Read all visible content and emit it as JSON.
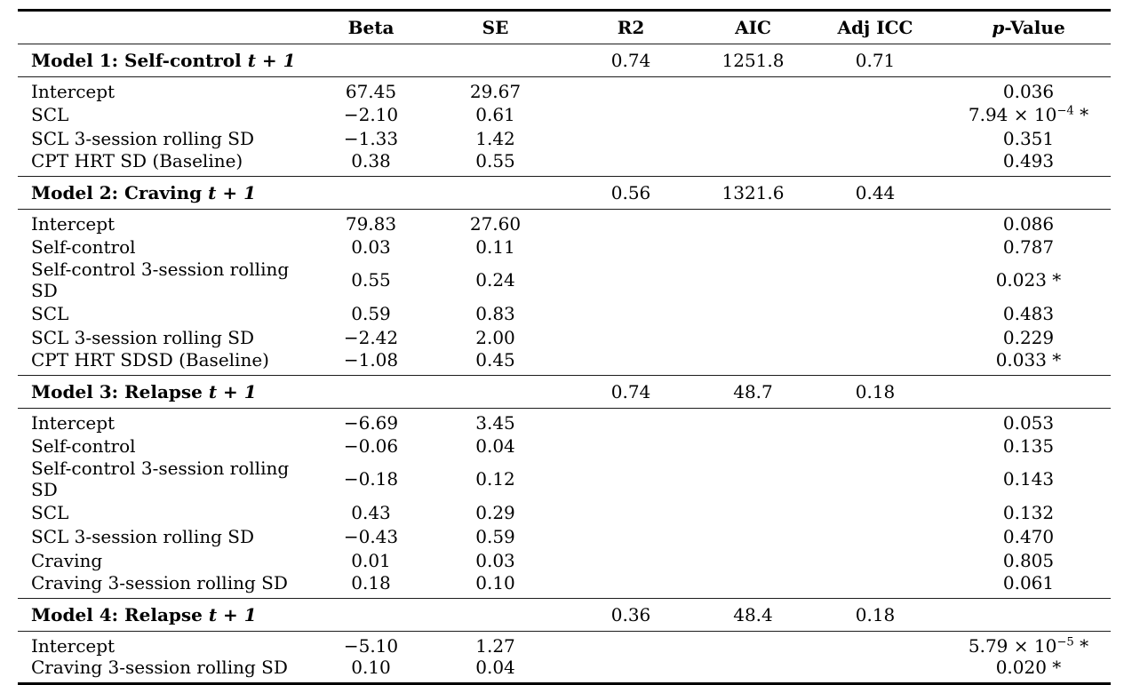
{
  "table": {
    "headers": {
      "beta": "Beta",
      "se": "SE",
      "r2": "R2",
      "aic": "AIC",
      "adj_icc": "Adj ICC",
      "p_italic": "p",
      "p_suffix": "-Value"
    },
    "models": [
      {
        "title": "Model 1: Self-control ",
        "title_t": "t + 1",
        "r2": "0.74",
        "aic": "1251.8",
        "adj_icc": "0.71",
        "rows": [
          {
            "label": "Intercept",
            "beta": "67.45",
            "se": "29.67",
            "p": "0.036",
            "p_sup": "",
            "p_after": ""
          },
          {
            "label": "SCL",
            "beta": "−2.10",
            "se": "0.61",
            "p": "7.94 × 10",
            "p_sup": "−4",
            "p_after": " *"
          },
          {
            "label": "SCL 3-session rolling SD",
            "beta": "−1.33",
            "se": "1.42",
            "p": "0.351",
            "p_sup": "",
            "p_after": ""
          },
          {
            "label": "CPT HRT SD (Baseline)",
            "beta": "0.38",
            "se": "0.55",
            "p": "0.493",
            "p_sup": "",
            "p_after": ""
          }
        ]
      },
      {
        "title": "Model 2: Craving ",
        "title_t": "t + 1",
        "r2": "0.56",
        "aic": "1321.6",
        "adj_icc": "0.44",
        "rows": [
          {
            "label": "Intercept",
            "beta": "79.83",
            "se": "27.60",
            "p": "0.086",
            "p_sup": "",
            "p_after": ""
          },
          {
            "label": "Self-control",
            "beta": "0.03",
            "se": "0.11",
            "p": "0.787",
            "p_sup": "",
            "p_after": ""
          },
          {
            "label": "Self-control 3-session rolling SD",
            "beta": "0.55",
            "se": "0.24",
            "p": "0.023 *",
            "p_sup": "",
            "p_after": ""
          },
          {
            "label": "SCL",
            "beta": "0.59",
            "se": "0.83",
            "p": "0.483",
            "p_sup": "",
            "p_after": ""
          },
          {
            "label": "SCL 3-session rolling SD",
            "beta": "−2.42",
            "se": "2.00",
            "p": "0.229",
            "p_sup": "",
            "p_after": ""
          },
          {
            "label": "CPT HRT SDSD (Baseline)",
            "beta": "−1.08",
            "se": "0.45",
            "p": "0.033 *",
            "p_sup": "",
            "p_after": ""
          }
        ]
      },
      {
        "title": "Model 3: Relapse ",
        "title_t": "t + 1",
        "r2": "0.74",
        "aic": "48.7",
        "adj_icc": "0.18",
        "rows": [
          {
            "label": "Intercept",
            "beta": "−6.69",
            "se": "3.45",
            "p": "0.053",
            "p_sup": "",
            "p_after": ""
          },
          {
            "label": "Self-control",
            "beta": "−0.06",
            "se": "0.04",
            "p": "0.135",
            "p_sup": "",
            "p_after": ""
          },
          {
            "label": "Self-control 3-session rolling SD",
            "beta": "−0.18",
            "se": "0.12",
            "p": "0.143",
            "p_sup": "",
            "p_after": ""
          },
          {
            "label": "SCL",
            "beta": "0.43",
            "se": "0.29",
            "p": "0.132",
            "p_sup": "",
            "p_after": ""
          },
          {
            "label": "SCL 3-session rolling SD",
            "beta": "−0.43",
            "se": "0.59",
            "p": "0.470",
            "p_sup": "",
            "p_after": ""
          },
          {
            "label": "Craving",
            "beta": "0.01",
            "se": "0.03",
            "p": "0.805",
            "p_sup": "",
            "p_after": ""
          },
          {
            "label": "Craving 3-session rolling SD",
            "beta": "0.18",
            "se": "0.10",
            "p": "0.061",
            "p_sup": "",
            "p_after": ""
          }
        ]
      },
      {
        "title": "Model 4: Relapse ",
        "title_t": "t + 1",
        "r2": "0.36",
        "aic": "48.4",
        "adj_icc": "0.18",
        "rows": [
          {
            "label": "Intercept",
            "beta": "−5.10",
            "se": "1.27",
            "p": "5.79 × 10",
            "p_sup": "−5",
            "p_after": " *"
          },
          {
            "label": "Craving 3-session rolling SD",
            "beta": "0.10",
            "se": "0.04",
            "p": "0.020 *",
            "p_sup": "",
            "p_after": ""
          }
        ]
      }
    ]
  }
}
